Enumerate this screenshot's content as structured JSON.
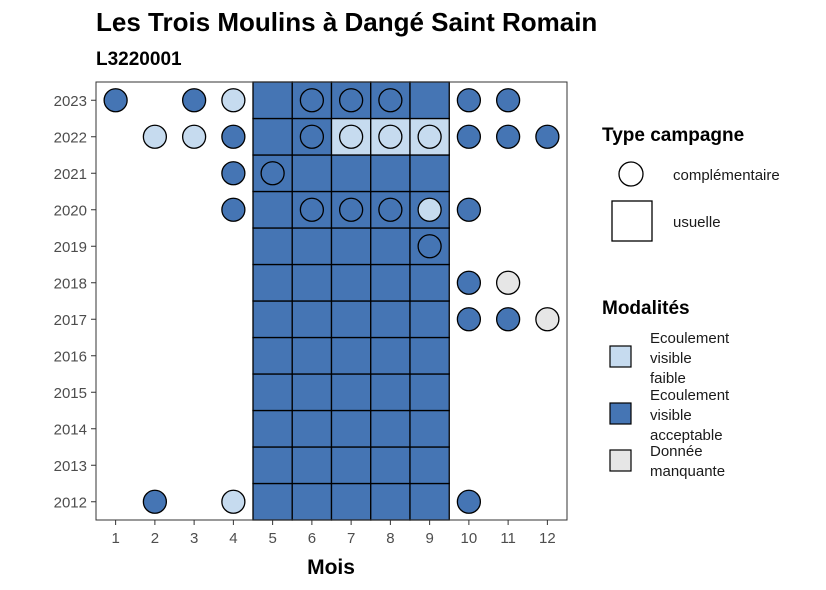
{
  "chart_data": {
    "type": "scatter",
    "title": "Les Trois Moulins à Dangé Saint Romain",
    "subtitle": "L3220001",
    "xlabel": "Mois",
    "ylabel": "",
    "x_ticks": [
      "1",
      "2",
      "3",
      "4",
      "5",
      "6",
      "7",
      "8",
      "9",
      "10",
      "11",
      "12"
    ],
    "y_ticks": [
      "2012",
      "2013",
      "2014",
      "2015",
      "2016",
      "2017",
      "2018",
      "2019",
      "2020",
      "2021",
      "2022",
      "2023"
    ],
    "xlim": [
      0.5,
      12.5
    ],
    "ylim": [
      2011.5,
      2023.5
    ],
    "grid": false,
    "legend_placement": "right",
    "legend_type": {
      "title": "Type campagne",
      "items": [
        {
          "key": "complementaire",
          "label": "complémentaire",
          "shape": "circle"
        },
        {
          "key": "usuelle",
          "label": "usuelle",
          "shape": "square"
        }
      ]
    },
    "legend_modalites": {
      "title": "Modalités",
      "items": [
        {
          "key": "faible",
          "lines": [
            "Ecoulement",
            "visible",
            "faible"
          ],
          "color": "#c6dbef"
        },
        {
          "key": "acceptable",
          "lines": [
            "Ecoulement",
            "visible",
            "acceptable"
          ],
          "color": "#4575b4"
        },
        {
          "key": "manquante",
          "lines": [
            "Donnée",
            "manquante"
          ],
          "color": "#e6e6e6"
        }
      ]
    },
    "usuelle_cells": {
      "months": [
        5,
        6,
        7,
        8,
        9
      ],
      "years": [
        2012,
        2023
      ],
      "default_modalite": "acceptable",
      "exceptions": [
        {
          "month": 7,
          "year": 2022,
          "modalite": "faible"
        },
        {
          "month": 8,
          "year": 2022,
          "modalite": "faible"
        },
        {
          "month": 9,
          "year": 2022,
          "modalite": "faible"
        }
      ]
    },
    "points": [
      {
        "month": 1,
        "year": 2023,
        "modalite": "acceptable"
      },
      {
        "month": 3,
        "year": 2023,
        "modalite": "acceptable"
      },
      {
        "month": 4,
        "year": 2023,
        "modalite": "faible"
      },
      {
        "month": 6,
        "year": 2023,
        "modalite": "acceptable"
      },
      {
        "month": 7,
        "year": 2023,
        "modalite": "acceptable"
      },
      {
        "month": 8,
        "year": 2023,
        "modalite": "acceptable"
      },
      {
        "month": 10,
        "year": 2023,
        "modalite": "acceptable"
      },
      {
        "month": 11,
        "year": 2023,
        "modalite": "acceptable"
      },
      {
        "month": 2,
        "year": 2022,
        "modalite": "faible"
      },
      {
        "month": 3,
        "year": 2022,
        "modalite": "faible"
      },
      {
        "month": 4,
        "year": 2022,
        "modalite": "acceptable"
      },
      {
        "month": 6,
        "year": 2022,
        "modalite": "acceptable"
      },
      {
        "month": 7,
        "year": 2022,
        "modalite": "faible"
      },
      {
        "month": 8,
        "year": 2022,
        "modalite": "faible"
      },
      {
        "month": 9,
        "year": 2022,
        "modalite": "faible"
      },
      {
        "month": 10,
        "year": 2022,
        "modalite": "acceptable"
      },
      {
        "month": 11,
        "year": 2022,
        "modalite": "acceptable"
      },
      {
        "month": 12,
        "year": 2022,
        "modalite": "acceptable"
      },
      {
        "month": 4,
        "year": 2021,
        "modalite": "acceptable"
      },
      {
        "month": 5,
        "year": 2021,
        "modalite": "acceptable"
      },
      {
        "month": 4,
        "year": 2020,
        "modalite": "acceptable"
      },
      {
        "month": 6,
        "year": 2020,
        "modalite": "acceptable"
      },
      {
        "month": 7,
        "year": 2020,
        "modalite": "acceptable"
      },
      {
        "month": 8,
        "year": 2020,
        "modalite": "acceptable"
      },
      {
        "month": 9,
        "year": 2020,
        "modalite": "faible"
      },
      {
        "month": 10,
        "year": 2020,
        "modalite": "acceptable"
      },
      {
        "month": 9,
        "year": 2019,
        "modalite": "acceptable"
      },
      {
        "month": 10,
        "year": 2018,
        "modalite": "acceptable"
      },
      {
        "month": 11,
        "year": 2018,
        "modalite": "manquante"
      },
      {
        "month": 10,
        "year": 2017,
        "modalite": "acceptable"
      },
      {
        "month": 11,
        "year": 2017,
        "modalite": "acceptable"
      },
      {
        "month": 12,
        "year": 2017,
        "modalite": "manquante"
      },
      {
        "month": 2,
        "year": 2012,
        "modalite": "acceptable"
      },
      {
        "month": 4,
        "year": 2012,
        "modalite": "faible"
      },
      {
        "month": 10,
        "year": 2012,
        "modalite": "acceptable"
      }
    ]
  }
}
